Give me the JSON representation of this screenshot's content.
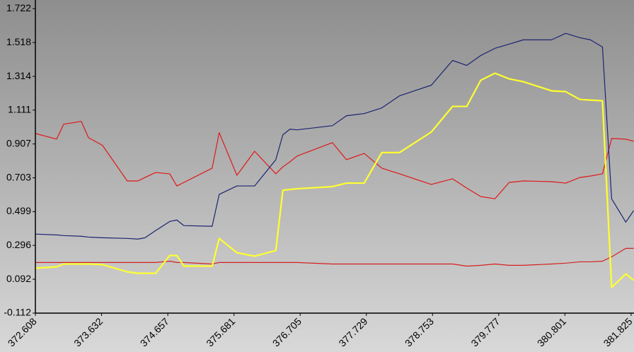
{
  "chart_data": {
    "type": "line",
    "x": [
      372.608,
      372.936,
      373.046,
      373.319,
      373.429,
      373.647,
      374.03,
      374.194,
      374.304,
      374.468,
      374.687,
      374.796,
      374.905,
      375.343,
      375.452,
      375.726,
      376.0,
      376.328,
      376.437,
      376.546,
      376.656,
      377.203,
      377.422,
      377.695,
      377.969,
      378.242,
      378.734,
      379.063,
      379.282,
      379.5,
      379.719,
      379.938,
      380.157,
      380.594,
      380.813,
      381.032,
      381.196,
      381.382,
      381.524,
      381.743,
      381.864
    ],
    "series": [
      {
        "color": "#d42020",
        "values": [
          0.193,
          0.193,
          0.193,
          0.193,
          0.193,
          0.193,
          0.193,
          0.193,
          0.193,
          0.193,
          0.201,
          0.193,
          0.193,
          0.184,
          0.193,
          0.193,
          0.193,
          0.193,
          0.193,
          0.193,
          0.193,
          0.184,
          0.184,
          0.184,
          0.184,
          0.184,
          0.184,
          0.184,
          0.171,
          0.176,
          0.184,
          0.176,
          0.176,
          0.184,
          0.189,
          0.197,
          0.197,
          0.201,
          0.227,
          0.278,
          0.278
        ]
      },
      {
        "color": "#e01818",
        "values": [
          0.97,
          0.936,
          1.026,
          1.043,
          0.945,
          0.898,
          0.684,
          0.684,
          0.705,
          0.735,
          0.727,
          0.654,
          0.675,
          0.761,
          0.975,
          0.718,
          0.863,
          0.727,
          0.769,
          0.799,
          0.834,
          0.915,
          0.812,
          0.85,
          0.761,
          0.727,
          0.663,
          0.697,
          0.641,
          0.59,
          0.577,
          0.675,
          0.684,
          0.68,
          0.671,
          0.705,
          0.714,
          0.727,
          0.94,
          0.936,
          0.923
        ]
      },
      {
        "color": "#1c2470",
        "values": [
          0.364,
          0.359,
          0.355,
          0.351,
          0.346,
          0.342,
          0.338,
          0.334,
          0.342,
          0.385,
          0.44,
          0.449,
          0.415,
          0.411,
          0.603,
          0.654,
          0.654,
          0.812,
          0.962,
          0.996,
          0.992,
          1.017,
          1.077,
          1.09,
          1.124,
          1.197,
          1.261,
          1.41,
          1.38,
          1.44,
          1.483,
          1.508,
          1.534,
          1.534,
          1.573,
          1.547,
          1.534,
          1.491,
          0.577,
          0.436,
          0.505
        ]
      },
      {
        "color": "#ffff30",
        "values": [
          0.159,
          0.167,
          0.184,
          0.184,
          0.184,
          0.18,
          0.137,
          0.128,
          0.128,
          0.128,
          0.235,
          0.235,
          0.171,
          0.171,
          0.338,
          0.252,
          0.231,
          0.265,
          0.628,
          0.633,
          0.637,
          0.65,
          0.671,
          0.671,
          0.855,
          0.855,
          0.979,
          1.133,
          1.133,
          1.291,
          1.333,
          1.299,
          1.282,
          1.227,
          1.222,
          1.175,
          1.171,
          1.167,
          0.043,
          0.124,
          0.086
        ]
      }
    ],
    "xlim": [
      372.608,
      381.87
    ],
    "xticks": [
      372.608,
      373.632,
      374.657,
      375.681,
      376.705,
      377.729,
      378.753,
      379.777,
      380.801,
      381.825
    ],
    "ylim": [
      -0.112,
      1.774
    ],
    "yticks": [
      -0.112,
      0.092,
      0.296,
      0.499,
      0.703,
      0.907,
      1.111,
      1.314,
      1.518,
      1.722
    ]
  }
}
